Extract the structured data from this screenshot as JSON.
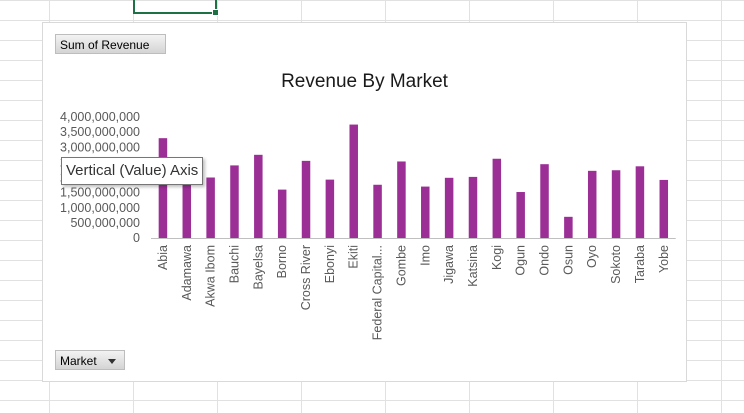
{
  "pivot": {
    "values_button": "Sum of Revenue",
    "axis_button": "Market",
    "tooltip": "Vertical (Value) Axis"
  },
  "colors": {
    "bar": "#9b2f96",
    "selected_cell_border": "#1e7145"
  },
  "chart_data": {
    "type": "bar",
    "title": "Revenue By Market",
    "xlabel": "",
    "ylabel": "",
    "ylim": [
      0,
      4000000000
    ],
    "yticks": [
      0,
      500000000,
      1000000000,
      1500000000,
      2000000000,
      2500000000,
      3000000000,
      3500000000,
      4000000000
    ],
    "ytick_labels": [
      "0",
      "500,000,000",
      "1,000,000,000",
      "1,500,000,000",
      "2,000,000,000",
      "2,500,000,000",
      "3,000,000,000",
      "3,500,000,000",
      "4,000,000,000"
    ],
    "categories": [
      "Abia",
      "Adamawa",
      "Akwa Ibom",
      "Bauchi",
      "Bayelsa",
      "Borno",
      "Cross River",
      "Ebonyi",
      "Ekiti",
      "Federal Capital...",
      "Gombe",
      "Imo",
      "Jigawa",
      "Katsina",
      "Kogi",
      "Ogun",
      "Ondo",
      "Osun",
      "Oyo",
      "Sokoto",
      "Taraba",
      "Yobe"
    ],
    "values": [
      3300000000,
      1780000000,
      2000000000,
      2400000000,
      2750000000,
      1600000000,
      2550000000,
      1930000000,
      3750000000,
      1760000000,
      2530000000,
      1700000000,
      1990000000,
      2020000000,
      2620000000,
      1520000000,
      2440000000,
      700000000,
      2220000000,
      2240000000,
      2370000000,
      1920000000
    ],
    "grid": false,
    "legend": "none"
  }
}
